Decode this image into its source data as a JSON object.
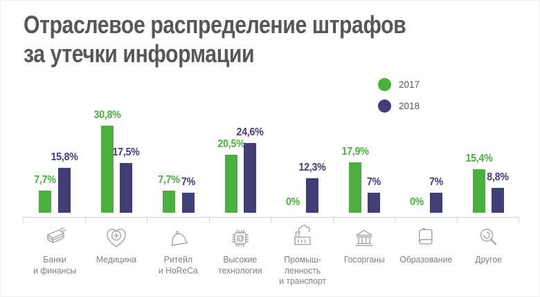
{
  "title_lines": [
    "Отраслевое распределение штрафов",
    "за утечки информации"
  ],
  "legend": {
    "items": [
      {
        "label": "2017",
        "color": "#4bae3e"
      },
      {
        "label": "2018",
        "color": "#413e75"
      }
    ]
  },
  "colors": {
    "green_2017": "#4bae3e",
    "navy_2018": "#413e75",
    "title_text": "#56575a",
    "category_text": "#7d7f82",
    "icon_stroke": "#a5a7aa",
    "axis_line": "#d2d4d6"
  },
  "chart_data": {
    "type": "bar",
    "title": "Отраслевое распределение штрафов за утечки информации",
    "categories": [
      "Банки и финансы",
      "Медицина",
      "Ритейл и HoReCa",
      "Высокие технологии",
      "Промышленность и транспорт",
      "Госорганы",
      "Образование",
      "Другое"
    ],
    "category_lines": [
      [
        "Банки",
        "и финансы"
      ],
      [
        "Медицина"
      ],
      [
        "Ритейл",
        "и HoReCa"
      ],
      [
        "Высокие",
        "технологии"
      ],
      [
        "Промыш-",
        "ленность",
        "и транспорт"
      ],
      [
        "Госорганы"
      ],
      [
        "Образование"
      ],
      [
        "Другое"
      ]
    ],
    "category_icons": [
      "banknotes-icon",
      "heart-cross-icon",
      "cloche-icon",
      "microchip-icon",
      "factory-icon",
      "government-building-icon",
      "book-icon",
      "magnifier-icon"
    ],
    "series": [
      {
        "name": "2017",
        "color": "#4bae3e",
        "values": [
          7.7,
          30.8,
          7.7,
          20.5,
          0,
          17.9,
          0,
          15.4
        ],
        "labels": [
          "7,7%",
          "30,8%",
          "7,7%",
          "20,5%",
          "0%",
          "17,9%",
          "0%",
          "15,4%"
        ]
      },
      {
        "name": "2018",
        "color": "#413e75",
        "values": [
          15.8,
          17.5,
          7,
          24.6,
          12.3,
          7,
          7,
          8.8
        ],
        "labels": [
          "15,8%",
          "17,5%",
          "7%",
          "24,6%",
          "12,3%",
          "7%",
          "7%",
          "8,8%"
        ]
      }
    ],
    "ylim": [
      0,
      32
    ],
    "value_suffix": "%",
    "grid": false,
    "legend_position": "top-right"
  }
}
